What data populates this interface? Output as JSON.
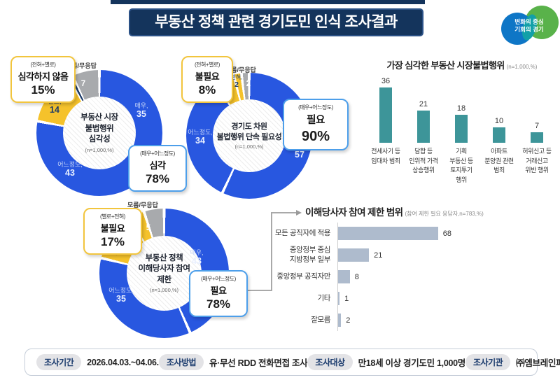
{
  "header": {
    "title": "부동산 정책 관련 경기도민 인식 조사결과"
  },
  "logo": {
    "line1": "변화의 중심",
    "line2": "기회의 경기"
  },
  "palette": {
    "navy": "#14345C",
    "blue": "#2857E0",
    "yellow": "#F5C22B",
    "gray": "#A8AAAD",
    "teal": "#3D9599",
    "steel": "#AEBBCD"
  },
  "chart_data": [
    {
      "id": "illegal-activity-severity",
      "type": "donut",
      "center_title": "부동산 시장\n불법행위\n심각성",
      "n_label": "(n=1,000,%)",
      "outside_label": "모름/무응답",
      "segments": [
        {
          "label": "매우,",
          "value": 35,
          "color": "#2857E0"
        },
        {
          "label": "어느정도,",
          "value": 43,
          "color": "#2857E0"
        },
        {
          "label": "별로,",
          "value": 14,
          "color": "#F5C22B"
        },
        {
          "label": "전혀,",
          "value": 1,
          "color": "#1B3A68"
        },
        {
          "label": "모름/무응답",
          "value": 7,
          "color": "#A8AAAD"
        }
      ],
      "callout_negative": {
        "qualifier": "(전혀+별로)",
        "label": "심각하지 않음",
        "percent": "15%"
      },
      "callout_positive": {
        "qualifier": "(매우+어느정도)",
        "label": "심각",
        "percent": "78%"
      }
    },
    {
      "id": "crackdown-necessity",
      "type": "donut",
      "center_title": "경기도 차원\n불법행위 단속 필요성",
      "n_label": "(n=1,000,%)",
      "outside_label": "모름/무응답",
      "segments": [
        {
          "label": "매우,",
          "value": 57,
          "color": "#2857E0"
        },
        {
          "label": "어느정도,",
          "value": 34,
          "color": "#2857E0"
        },
        {
          "label": "별로,",
          "value": 5,
          "color": "#F5C22B"
        },
        {
          "label": "전혀,",
          "value": 2,
          "color": "#F5C22B"
        },
        {
          "label": "모름/무응답",
          "value": 2,
          "color": "#A8AAAD"
        }
      ],
      "callout_negative": {
        "qualifier": "(전혀+별로)",
        "label": "불필요",
        "percent": "8%"
      },
      "callout_positive": {
        "qualifier": "(매우+어느정도)",
        "label": "필요",
        "percent": "90%"
      }
    },
    {
      "id": "stakeholder-restriction",
      "type": "donut",
      "center_title": "부동산 정책\n이해당사자 참여\n제한",
      "n_label": "(n=1,000,%)",
      "outside_label": "모름/무응답",
      "segments": [
        {
          "label": "매우,",
          "value": 43,
          "color": "#2857E0"
        },
        {
          "label": "어느정도,",
          "value": 35,
          "color": "#2857E0"
        },
        {
          "label": "별로,",
          "value": 12,
          "color": "#F5C22B"
        },
        {
          "label": "전혀,",
          "value": 4,
          "color": "#F5C22B"
        },
        {
          "label": "모름/무응답",
          "value": 5,
          "color": "#A8AAAD"
        }
      ],
      "callout_negative": {
        "qualifier": "(별로+전혀)",
        "label": "불필요",
        "percent": "17%"
      },
      "callout_positive": {
        "qualifier": "(매우+어느정도)",
        "label": "필요",
        "percent": "78%"
      }
    },
    {
      "id": "most-serious-illegal-activity",
      "type": "bar",
      "title": "가장 심각한 부동산 시장불법행위",
      "n_label": "(n=1,000,%)",
      "bar_color": "#3D9599",
      "ylim": [
        0,
        40
      ],
      "items": [
        {
          "label": "전세사기 등\n임대차 범죄",
          "value": 36
        },
        {
          "label": "담합 등\n인위적 가격\n상승행위",
          "value": 21
        },
        {
          "label": "기획\n부동산 등\n토지투기\n행위",
          "value": 18
        },
        {
          "label": "아파트\n분양권 관련\n범죄",
          "value": 10
        },
        {
          "label": "허위신고 등\n거래신고\n위반 행위",
          "value": 7
        }
      ]
    },
    {
      "id": "restriction-scope",
      "type": "hbar",
      "title": "이해당사자 참여 제한 범위",
      "n_label": "(참여 제한 필요 응답자,n=783,%)",
      "bar_color": "#AEBBCD",
      "xlim": [
        0,
        75
      ],
      "items": [
        {
          "label": "모든 공직자에 적용",
          "value": 68
        },
        {
          "label": "중앙정부 중심\n지방정부 일부",
          "value": 21
        },
        {
          "label": "중앙정부 공직자만",
          "value": 8
        },
        {
          "label": "기타",
          "value": 1
        },
        {
          "label": "잘모름",
          "value": 2
        }
      ]
    }
  ],
  "footer": {
    "items": [
      {
        "label": "조사기간",
        "value": "2026.04.03.~04.06."
      },
      {
        "label": "조사방법",
        "value": "유·무선 RDD 전화면접 조사"
      },
      {
        "label": "조사대상",
        "value": "만18세 이상 경기도민 1,000명"
      },
      {
        "label": "조사기관",
        "value": "㈜엠브레인퍼블릭"
      }
    ]
  }
}
